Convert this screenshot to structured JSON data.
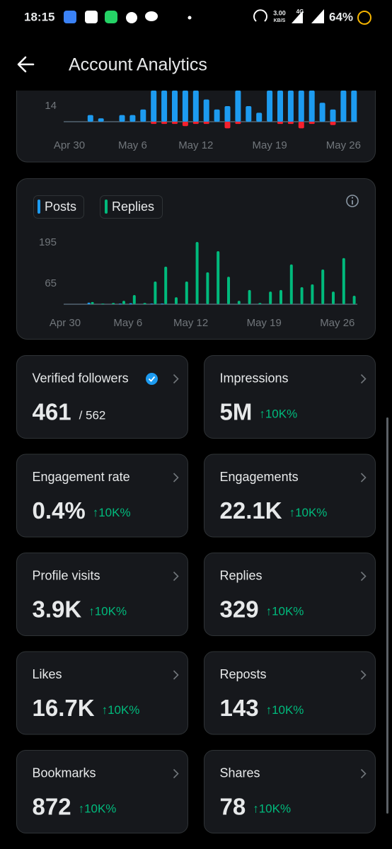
{
  "status_bar": {
    "time": "18:15",
    "net_speed": "3.00",
    "net_unit": "KB/S",
    "network": "4G",
    "battery": "64%"
  },
  "header": {
    "title": "Account Analytics"
  },
  "chart_data": [
    {
      "type": "bar",
      "x": [
        "Apr 30",
        null,
        null,
        null,
        null,
        null,
        "May 6",
        null,
        null,
        null,
        null,
        null,
        "May 12",
        null,
        null,
        null,
        null,
        null,
        null,
        "May 19",
        null,
        null,
        null,
        null,
        null,
        null,
        "May 26",
        null
      ],
      "series": [
        {
          "color": "#1d9bf0",
          "values": [
            0,
            0,
            6,
            3,
            0,
            6,
            6,
            11,
            28,
            28,
            28,
            28,
            28,
            20,
            11,
            14,
            28,
            14,
            8,
            28,
            28,
            28,
            28,
            28,
            17,
            11,
            28,
            28
          ]
        },
        {
          "color": "#f4212e",
          "values": [
            0,
            0,
            0,
            0,
            0,
            0,
            0,
            0,
            -2,
            -2,
            -2,
            -4,
            -2,
            -2,
            0,
            -6,
            -2,
            0,
            0,
            0,
            -2,
            -2,
            -6,
            -2,
            0,
            -3,
            0,
            0
          ]
        }
      ],
      "ylim": [
        -7,
        28
      ],
      "yticks": [
        14
      ],
      "grid": false
    },
    {
      "type": "bar",
      "x": [
        "Apr 30",
        null,
        null,
        null,
        null,
        null,
        "May 6",
        null,
        null,
        null,
        null,
        null,
        "May 12",
        null,
        null,
        null,
        null,
        null,
        null,
        "May 19",
        null,
        null,
        null,
        null,
        null,
        null,
        "May 26",
        null
      ],
      "series": [
        {
          "name": "Posts",
          "color": "#1d9bf0",
          "values": [
            0,
            0,
            5,
            0,
            0,
            2,
            3,
            0,
            2,
            2,
            0,
            0,
            0,
            0,
            0,
            0,
            0,
            0,
            0,
            0,
            0,
            0,
            0,
            0,
            0,
            0,
            0,
            0
          ]
        },
        {
          "name": "Replies",
          "color": "#00ba7c",
          "values": [
            0,
            0,
            7,
            2,
            4,
            11,
            29,
            4,
            72,
            119,
            22,
            72,
            197,
            101,
            168,
            87,
            11,
            45,
            4,
            40,
            45,
            126,
            54,
            63,
            110,
            40,
            146,
            27
          ]
        }
      ],
      "ylim": [
        0,
        215
      ],
      "yticks": [
        65,
        195
      ],
      "grid": false,
      "legend": "top-left"
    }
  ],
  "cards": [
    {
      "title": "Verified followers",
      "value": "461",
      "total": "/ 562"
    },
    {
      "title": "Impressions",
      "value": "5M",
      "change": "↑10K%"
    },
    {
      "title": "Engagement rate",
      "value": "0.4%",
      "change": "↑10K%"
    },
    {
      "title": "Engagements",
      "value": "22.1K",
      "change": "↑10K%"
    },
    {
      "title": "Profile visits",
      "value": "3.9K",
      "change": "↑10K%"
    },
    {
      "title": "Replies",
      "value": "329",
      "change": "↑10K%"
    },
    {
      "title": "Likes",
      "value": "16.7K",
      "change": "↑10K%"
    },
    {
      "title": "Reposts",
      "value": "143",
      "change": "↑10K%"
    },
    {
      "title": "Bookmarks",
      "value": "872",
      "change": "↑10K%"
    },
    {
      "title": "Shares",
      "value": "78",
      "change": "↑10K%"
    }
  ]
}
